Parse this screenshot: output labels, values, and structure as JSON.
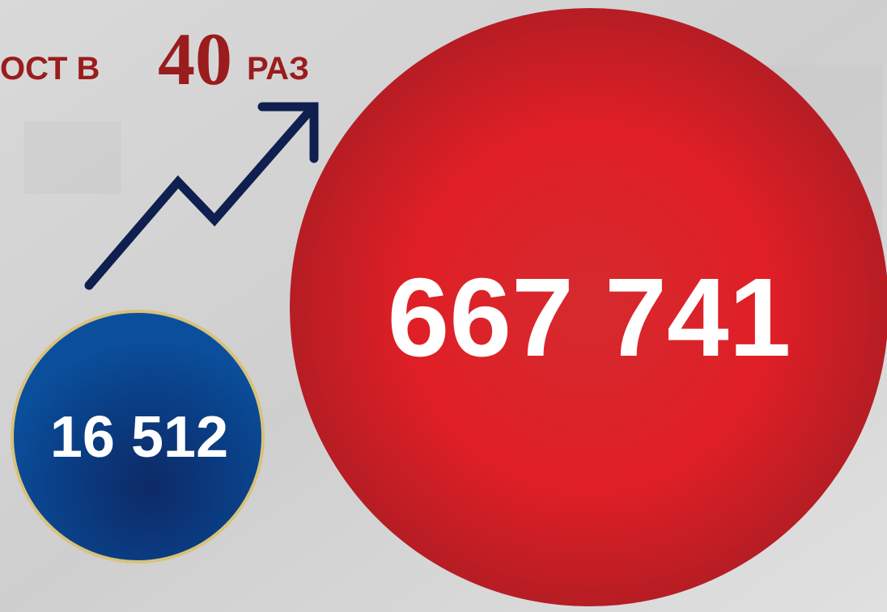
{
  "headline": {
    "prefix": "ОСТ В",
    "number": "40",
    "suffix": "РАЗ"
  },
  "circles": {
    "small": "16 512",
    "large": "667 741"
  }
}
